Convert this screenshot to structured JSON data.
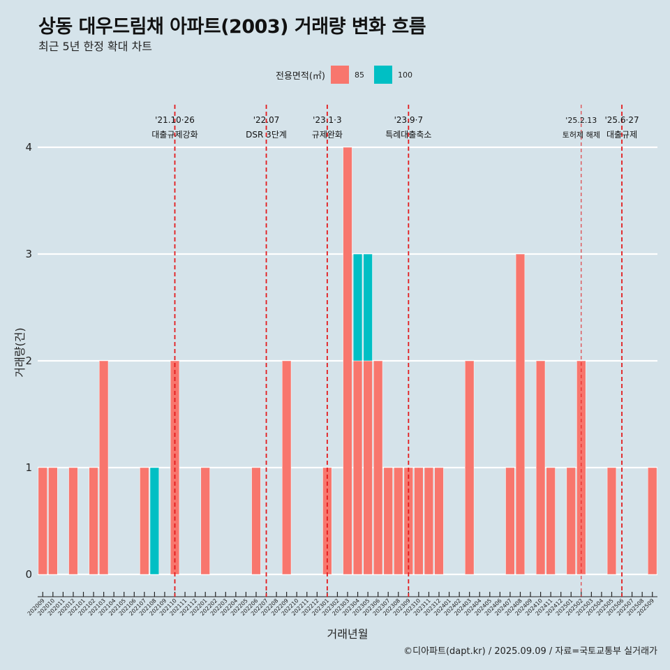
{
  "title": "상동 대우드림채 아파트(2003) 거래량 변화 흐름",
  "subtitle": "최근 5년 한정 확대 차트",
  "legend": {
    "title": "전용면적(㎡)",
    "items": [
      {
        "label": "85",
        "color": "#f8766d"
      },
      {
        "label": "100",
        "color": "#00bfc4"
      }
    ]
  },
  "caption": "©디아파트(dapt.kr) / 2025.09.09 / 자료=국토교통부 실거래가",
  "colors": {
    "background": "#d5e3ea",
    "grid": "#ffffff",
    "event_line": "#e31a1c"
  },
  "chart_data": {
    "type": "bar",
    "stacked": true,
    "xlabel": "거래년월",
    "ylabel": "거래량(건)",
    "ylim": [
      0,
      4
    ],
    "yticks": [
      0,
      1,
      2,
      3,
      4
    ],
    "categories": [
      "202009",
      "202010",
      "202011",
      "202012",
      "202101",
      "202102",
      "202103",
      "202104",
      "202105",
      "202106",
      "202107",
      "202108",
      "202109",
      "202110",
      "202111",
      "202112",
      "202201",
      "202202",
      "202203",
      "202204",
      "202205",
      "202206",
      "202207",
      "202208",
      "202209",
      "202210",
      "202211",
      "202212",
      "202301",
      "202302",
      "202303",
      "202304",
      "202305",
      "202306",
      "202307",
      "202308",
      "202309",
      "202310",
      "202311",
      "202312",
      "202401",
      "202402",
      "202403",
      "202404",
      "202405",
      "202406",
      "202407",
      "202408",
      "202409",
      "202410",
      "202411",
      "202412",
      "202501",
      "202502",
      "202503",
      "202504",
      "202505",
      "202506",
      "202507",
      "202508",
      "202509"
    ],
    "series": [
      {
        "name": "85",
        "color": "#f8766d",
        "values": [
          1,
          1,
          0,
          1,
          0,
          1,
          2,
          0,
          0,
          0,
          1,
          0,
          0,
          2,
          0,
          0,
          1,
          0,
          0,
          0,
          0,
          1,
          0,
          0,
          2,
          0,
          0,
          0,
          1,
          0,
          4,
          2,
          2,
          2,
          1,
          1,
          1,
          1,
          1,
          1,
          0,
          0,
          2,
          0,
          0,
          0,
          1,
          3,
          0,
          2,
          1,
          0,
          1,
          2,
          0,
          0,
          1,
          0,
          0,
          0,
          1
        ]
      },
      {
        "name": "100",
        "color": "#00bfc4",
        "values": [
          0,
          0,
          0,
          0,
          0,
          0,
          0,
          0,
          0,
          0,
          0,
          1,
          0,
          0,
          0,
          0,
          0,
          0,
          0,
          0,
          0,
          0,
          0,
          0,
          0,
          0,
          0,
          0,
          0,
          0,
          0,
          1,
          1,
          0,
          0,
          0,
          0,
          0,
          0,
          0,
          0,
          0,
          0,
          0,
          0,
          0,
          0,
          0,
          0,
          0,
          0,
          0,
          0,
          0,
          0,
          0,
          0,
          0,
          0,
          0,
          0
        ]
      }
    ],
    "annotations": [
      {
        "date_label": "'21.10·26",
        "text": "대출규제강화",
        "x": "202110",
        "style": "dashed"
      },
      {
        "date_label": "'22.07",
        "text": "DSR 3단계",
        "x": "202207",
        "style": "dashed"
      },
      {
        "date_label": "'23.1·3",
        "text": "규제완화",
        "x": "202301",
        "style": "dashed"
      },
      {
        "date_label": "'23.9·7",
        "text": "특례대출축소",
        "x": "202309",
        "style": "dashed"
      },
      {
        "date_label": "'25.2.13",
        "text": "토허제 해제",
        "x": "202502",
        "style": "thin-dashed"
      },
      {
        "date_label": "'25.6·27",
        "text": "대출규제",
        "x": "202506",
        "style": "dashed"
      }
    ]
  }
}
